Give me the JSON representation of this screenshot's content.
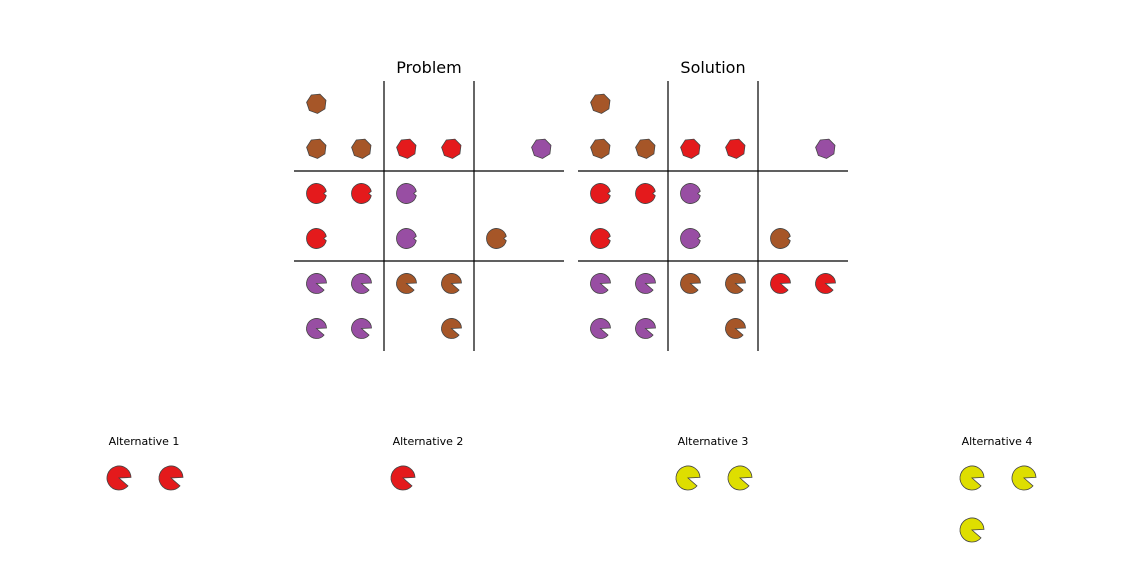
{
  "colors": {
    "brown": "#a65628",
    "red": "#e41a1c",
    "purple": "#984ea3",
    "yellow": "#dede00",
    "line": "#000000",
    "outline": "#444444"
  },
  "problem": {
    "title": "Problem",
    "cells": [
      {
        "row": 0,
        "col": 0,
        "shape": "heptagon",
        "color": "brown"
      },
      {
        "row": 1,
        "col": 0,
        "shape": "heptagon",
        "color": "brown"
      },
      {
        "row": 1,
        "col": 1,
        "shape": "heptagon",
        "color": "brown"
      },
      {
        "row": 1,
        "col": 2,
        "shape": "heptagon",
        "color": "red"
      },
      {
        "row": 1,
        "col": 3,
        "shape": "heptagon",
        "color": "red"
      },
      {
        "row": 1,
        "col": 5,
        "shape": "heptagon",
        "color": "purple"
      },
      {
        "row": 2,
        "col": 0,
        "shape": "notched",
        "color": "red"
      },
      {
        "row": 2,
        "col": 1,
        "shape": "notched",
        "color": "red"
      },
      {
        "row": 2,
        "col": 2,
        "shape": "notched",
        "color": "purple"
      },
      {
        "row": 3,
        "col": 0,
        "shape": "notched",
        "color": "red"
      },
      {
        "row": 3,
        "col": 2,
        "shape": "notched",
        "color": "purple"
      },
      {
        "row": 3,
        "col": 4,
        "shape": "notched",
        "color": "brown"
      },
      {
        "row": 4,
        "col": 0,
        "shape": "pacman",
        "color": "purple"
      },
      {
        "row": 4,
        "col": 1,
        "shape": "pacman",
        "color": "purple"
      },
      {
        "row": 4,
        "col": 2,
        "shape": "pacman",
        "color": "brown"
      },
      {
        "row": 4,
        "col": 3,
        "shape": "pacman",
        "color": "brown"
      },
      {
        "row": 5,
        "col": 0,
        "shape": "pacman",
        "color": "purple"
      },
      {
        "row": 5,
        "col": 1,
        "shape": "pacman",
        "color": "purple"
      },
      {
        "row": 5,
        "col": 3,
        "shape": "pacman",
        "color": "brown"
      }
    ]
  },
  "solution": {
    "title": "Solution",
    "cells": [
      {
        "row": 0,
        "col": 0,
        "shape": "heptagon",
        "color": "brown"
      },
      {
        "row": 1,
        "col": 0,
        "shape": "heptagon",
        "color": "brown"
      },
      {
        "row": 1,
        "col": 1,
        "shape": "heptagon",
        "color": "brown"
      },
      {
        "row": 1,
        "col": 2,
        "shape": "heptagon",
        "color": "red"
      },
      {
        "row": 1,
        "col": 3,
        "shape": "heptagon",
        "color": "red"
      },
      {
        "row": 1,
        "col": 5,
        "shape": "heptagon",
        "color": "purple"
      },
      {
        "row": 2,
        "col": 0,
        "shape": "notched",
        "color": "red"
      },
      {
        "row": 2,
        "col": 1,
        "shape": "notched",
        "color": "red"
      },
      {
        "row": 2,
        "col": 2,
        "shape": "notched",
        "color": "purple"
      },
      {
        "row": 3,
        "col": 0,
        "shape": "notched",
        "color": "red"
      },
      {
        "row": 3,
        "col": 2,
        "shape": "notched",
        "color": "purple"
      },
      {
        "row": 3,
        "col": 4,
        "shape": "notched",
        "color": "brown"
      },
      {
        "row": 4,
        "col": 0,
        "shape": "pacman",
        "color": "purple"
      },
      {
        "row": 4,
        "col": 1,
        "shape": "pacman",
        "color": "purple"
      },
      {
        "row": 4,
        "col": 2,
        "shape": "pacman",
        "color": "brown"
      },
      {
        "row": 4,
        "col": 3,
        "shape": "pacman",
        "color": "brown"
      },
      {
        "row": 4,
        "col": 4,
        "shape": "pacman",
        "color": "red"
      },
      {
        "row": 4,
        "col": 5,
        "shape": "pacman",
        "color": "red"
      },
      {
        "row": 5,
        "col": 0,
        "shape": "pacman",
        "color": "purple"
      },
      {
        "row": 5,
        "col": 1,
        "shape": "pacman",
        "color": "purple"
      },
      {
        "row": 5,
        "col": 3,
        "shape": "pacman",
        "color": "brown"
      }
    ]
  },
  "alternatives": [
    {
      "label": "Alternative 1",
      "items": [
        {
          "row": 0,
          "col": 0,
          "shape": "pacman",
          "color": "red"
        },
        {
          "row": 0,
          "col": 1,
          "shape": "pacman",
          "color": "red"
        }
      ]
    },
    {
      "label": "Alternative 2",
      "items": [
        {
          "row": 0,
          "col": 0,
          "shape": "pacman",
          "color": "red"
        }
      ]
    },
    {
      "label": "Alternative 3",
      "items": [
        {
          "row": 0,
          "col": 0,
          "shape": "pacman",
          "color": "yellow"
        },
        {
          "row": 0,
          "col": 1,
          "shape": "pacman",
          "color": "yellow"
        }
      ]
    },
    {
      "label": "Alternative 4",
      "items": [
        {
          "row": 0,
          "col": 0,
          "shape": "pacman",
          "color": "yellow"
        },
        {
          "row": 0,
          "col": 1,
          "shape": "pacman",
          "color": "yellow"
        },
        {
          "row": 1,
          "col": 0,
          "shape": "pacman",
          "color": "yellow"
        }
      ]
    }
  ]
}
